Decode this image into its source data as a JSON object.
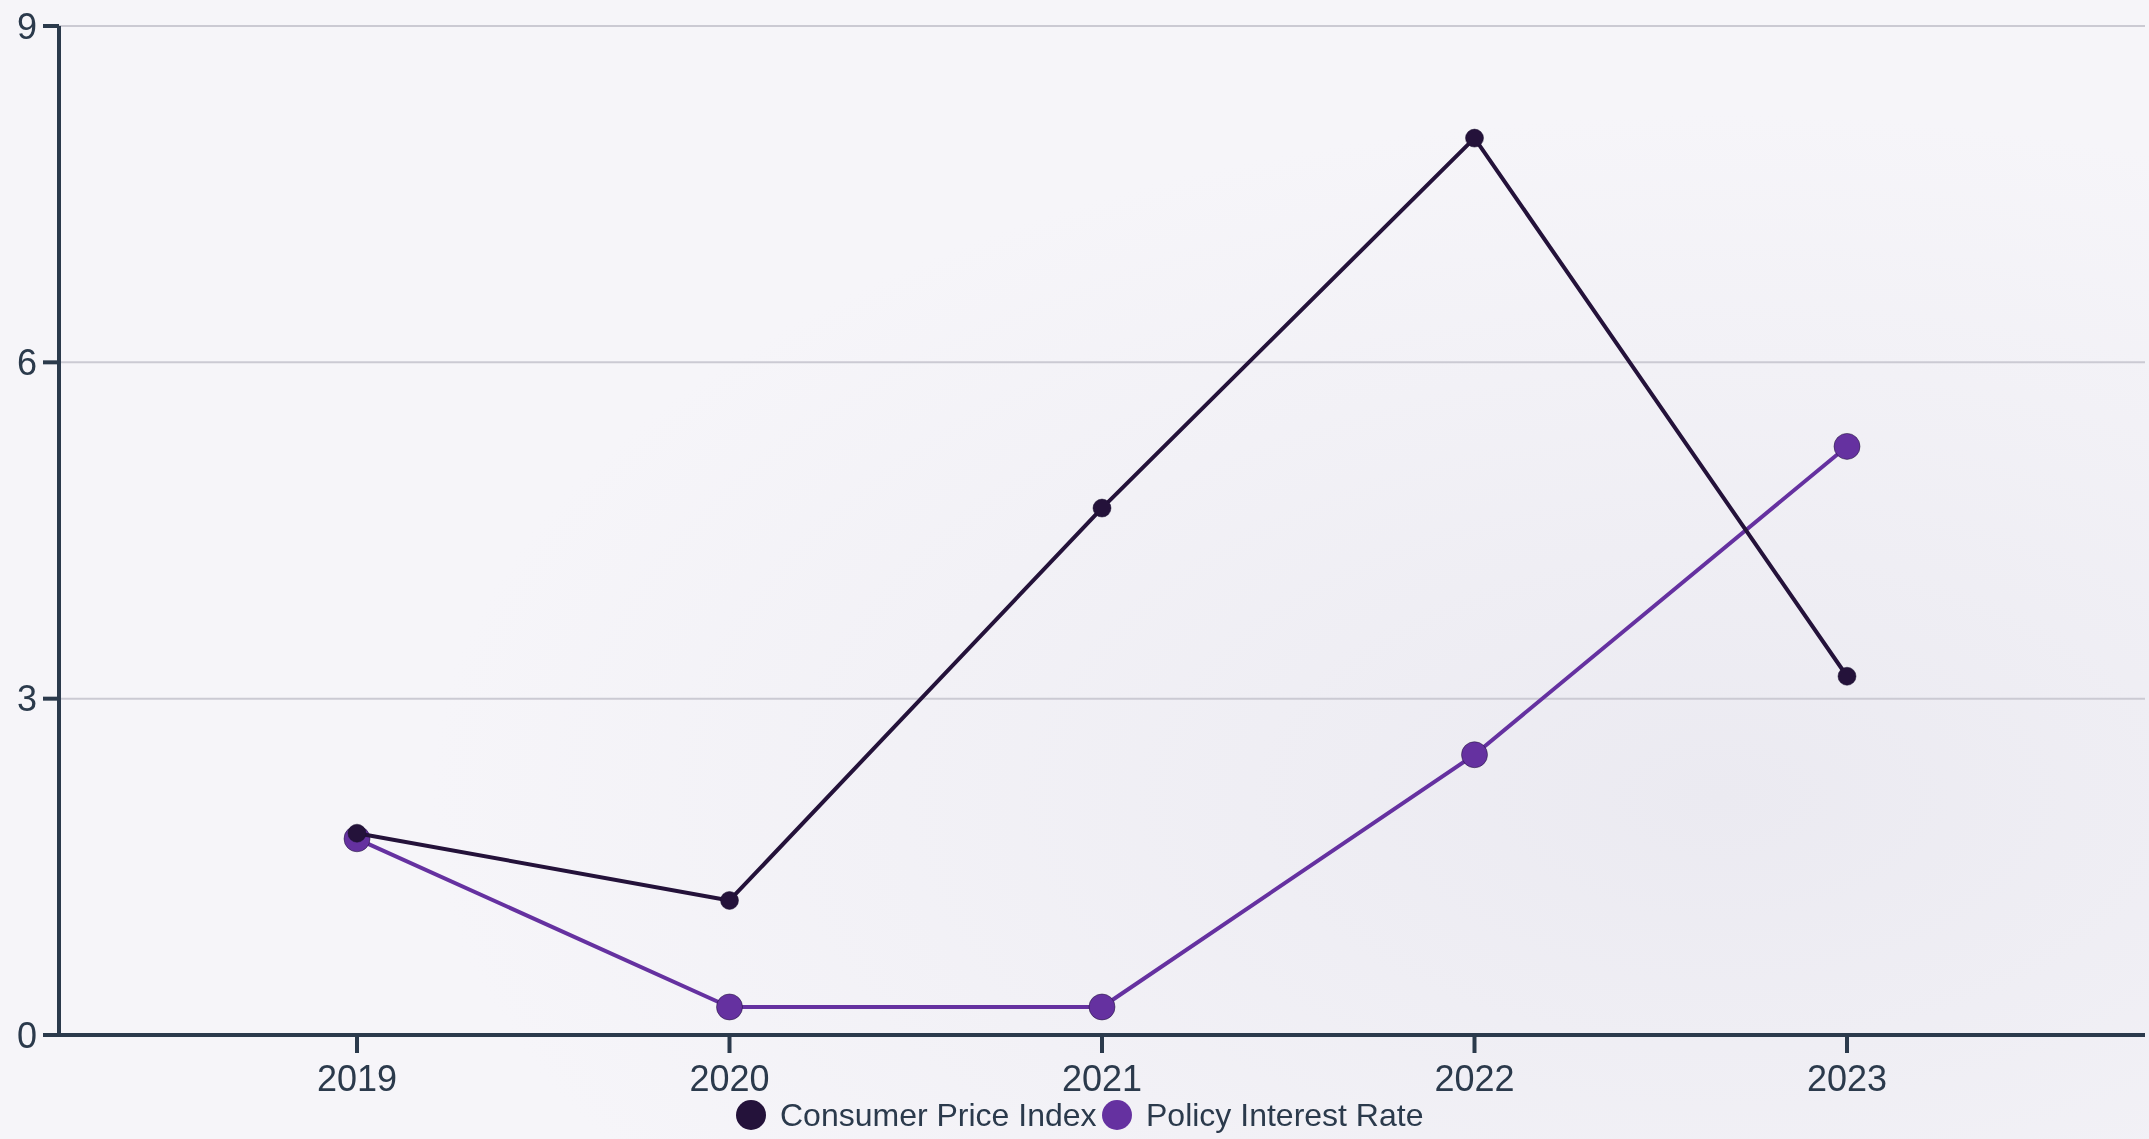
{
  "chart_data": {
    "type": "line",
    "categories": [
      "2019",
      "2020",
      "2021",
      "2022",
      "2023"
    ],
    "series": [
      {
        "name": "Consumer Price Index",
        "color": "#24123a",
        "values": [
          1.8,
          1.2,
          4.7,
          8.0,
          3.2
        ]
      },
      {
        "name": "Policy Interest Rate",
        "color": "#6531a0",
        "values": [
          1.75,
          0.25,
          0.25,
          2.5,
          5.25
        ]
      }
    ],
    "ylim": [
      0,
      9
    ],
    "yticks": [
      0,
      3,
      6,
      9
    ],
    "grid": "y",
    "legend": "bottom",
    "marker": "circle",
    "line_style": "solid"
  }
}
